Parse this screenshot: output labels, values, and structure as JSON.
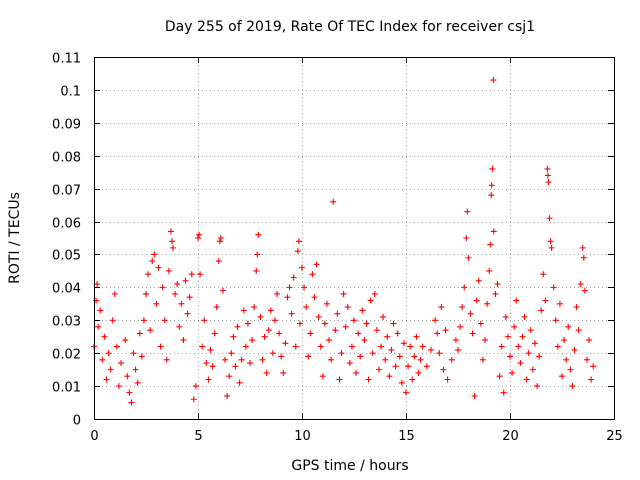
{
  "chart_data": {
    "type": "scatter",
    "title": "Day 255 of 2019, Rate Of TEC Index for receiver csj1",
    "xlabel": "GPS time / hours",
    "ylabel": "ROTI / TECUs",
    "xlim": [
      0,
      25
    ],
    "ylim": [
      0,
      0.11
    ],
    "xticks": [
      "0",
      "5",
      "10",
      "15",
      "20",
      "25"
    ],
    "yticks": [
      "0",
      "0.01",
      "0.02",
      "0.03",
      "0.04",
      "0.05",
      "0.06",
      "0.07",
      "0.08",
      "0.09",
      "0.1",
      "0.11"
    ],
    "grid": true,
    "marker": "plus",
    "color": "#ff0000",
    "series": [
      {
        "name": "ROTI",
        "points": [
          [
            0.0,
            0.022
          ],
          [
            0.1,
            0.036
          ],
          [
            0.15,
            0.041
          ],
          [
            0.2,
            0.028
          ],
          [
            0.3,
            0.033
          ],
          [
            0.4,
            0.018
          ],
          [
            0.5,
            0.025
          ],
          [
            0.6,
            0.012
          ],
          [
            0.7,
            0.02
          ],
          [
            0.8,
            0.015
          ],
          [
            0.9,
            0.03
          ],
          [
            1.0,
            0.038
          ],
          [
            1.1,
            0.022
          ],
          [
            1.2,
            0.01
          ],
          [
            1.3,
            0.017
          ],
          [
            1.5,
            0.024
          ],
          [
            1.6,
            0.013
          ],
          [
            1.7,
            0.008
          ],
          [
            1.8,
            0.005
          ],
          [
            1.9,
            0.02
          ],
          [
            2.0,
            0.015
          ],
          [
            2.1,
            0.011
          ],
          [
            2.2,
            0.026
          ],
          [
            2.3,
            0.019
          ],
          [
            2.4,
            0.03
          ],
          [
            2.5,
            0.038
          ],
          [
            2.6,
            0.044
          ],
          [
            2.7,
            0.027
          ],
          [
            2.8,
            0.048
          ],
          [
            2.9,
            0.05
          ],
          [
            3.0,
            0.035
          ],
          [
            3.1,
            0.046
          ],
          [
            3.2,
            0.022
          ],
          [
            3.3,
            0.04
          ],
          [
            3.4,
            0.03
          ],
          [
            3.5,
            0.018
          ],
          [
            3.6,
            0.045
          ],
          [
            3.7,
            0.057
          ],
          [
            3.75,
            0.054
          ],
          [
            3.8,
            0.052
          ],
          [
            3.9,
            0.038
          ],
          [
            4.0,
            0.041
          ],
          [
            4.1,
            0.028
          ],
          [
            4.2,
            0.035
          ],
          [
            4.3,
            0.024
          ],
          [
            4.4,
            0.042
          ],
          [
            4.5,
            0.032
          ],
          [
            4.6,
            0.037
          ],
          [
            4.7,
            0.044
          ],
          [
            4.8,
            0.006
          ],
          [
            4.9,
            0.01
          ],
          [
            5.0,
            0.055
          ],
          [
            5.05,
            0.056
          ],
          [
            5.1,
            0.044
          ],
          [
            5.2,
            0.022
          ],
          [
            5.3,
            0.03
          ],
          [
            5.4,
            0.017
          ],
          [
            5.5,
            0.012
          ],
          [
            5.6,
            0.021
          ],
          [
            5.7,
            0.016
          ],
          [
            5.8,
            0.026
          ],
          [
            5.9,
            0.034
          ],
          [
            6.0,
            0.048
          ],
          [
            6.05,
            0.054
          ],
          [
            6.1,
            0.055
          ],
          [
            6.2,
            0.039
          ],
          [
            6.3,
            0.018
          ],
          [
            6.4,
            0.007
          ],
          [
            6.5,
            0.013
          ],
          [
            6.6,
            0.02
          ],
          [
            6.7,
            0.025
          ],
          [
            6.8,
            0.016
          ],
          [
            6.9,
            0.028
          ],
          [
            7.0,
            0.011
          ],
          [
            7.1,
            0.018
          ],
          [
            7.2,
            0.033
          ],
          [
            7.3,
            0.022
          ],
          [
            7.4,
            0.029
          ],
          [
            7.5,
            0.017
          ],
          [
            7.6,
            0.024
          ],
          [
            7.7,
            0.034
          ],
          [
            7.8,
            0.045
          ],
          [
            7.85,
            0.05
          ],
          [
            7.9,
            0.056
          ],
          [
            8.0,
            0.031
          ],
          [
            8.1,
            0.018
          ],
          [
            8.2,
            0.025
          ],
          [
            8.3,
            0.014
          ],
          [
            8.4,
            0.027
          ],
          [
            8.5,
            0.033
          ],
          [
            8.6,
            0.02
          ],
          [
            8.7,
            0.03
          ],
          [
            8.8,
            0.038
          ],
          [
            8.9,
            0.026
          ],
          [
            9.0,
            0.019
          ],
          [
            9.1,
            0.014
          ],
          [
            9.2,
            0.023
          ],
          [
            9.3,
            0.037
          ],
          [
            9.4,
            0.04
          ],
          [
            9.5,
            0.032
          ],
          [
            9.6,
            0.043
          ],
          [
            9.7,
            0.022
          ],
          [
            9.8,
            0.051
          ],
          [
            9.85,
            0.054
          ],
          [
            9.9,
            0.029
          ],
          [
            10.0,
            0.046
          ],
          [
            10.1,
            0.04
          ],
          [
            10.2,
            0.034
          ],
          [
            10.3,
            0.019
          ],
          [
            10.4,
            0.026
          ],
          [
            10.5,
            0.044
          ],
          [
            10.6,
            0.037
          ],
          [
            10.7,
            0.047
          ],
          [
            10.8,
            0.031
          ],
          [
            10.9,
            0.022
          ],
          [
            11.0,
            0.013
          ],
          [
            11.1,
            0.029
          ],
          [
            11.2,
            0.035
          ],
          [
            11.3,
            0.024
          ],
          [
            11.4,
            0.018
          ],
          [
            11.5,
            0.066
          ],
          [
            11.6,
            0.027
          ],
          [
            11.7,
            0.032
          ],
          [
            11.8,
            0.012
          ],
          [
            11.9,
            0.02
          ],
          [
            12.0,
            0.038
          ],
          [
            12.1,
            0.028
          ],
          [
            12.2,
            0.034
          ],
          [
            12.3,
            0.017
          ],
          [
            12.4,
            0.022
          ],
          [
            12.5,
            0.03
          ],
          [
            12.6,
            0.014
          ],
          [
            12.7,
            0.026
          ],
          [
            12.8,
            0.019
          ],
          [
            12.9,
            0.033
          ],
          [
            13.0,
            0.024
          ],
          [
            13.1,
            0.029
          ],
          [
            13.2,
            0.012
          ],
          [
            13.3,
            0.036
          ],
          [
            13.4,
            0.02
          ],
          [
            13.5,
            0.038
          ],
          [
            13.6,
            0.027
          ],
          [
            13.7,
            0.015
          ],
          [
            13.8,
            0.022
          ],
          [
            13.9,
            0.031
          ],
          [
            14.0,
            0.018
          ],
          [
            14.1,
            0.025
          ],
          [
            14.2,
            0.013
          ],
          [
            14.3,
            0.021
          ],
          [
            14.4,
            0.029
          ],
          [
            14.5,
            0.016
          ],
          [
            14.6,
            0.026
          ],
          [
            14.7,
            0.019
          ],
          [
            14.8,
            0.011
          ],
          [
            14.9,
            0.023
          ],
          [
            15.0,
            0.008
          ],
          [
            15.1,
            0.016
          ],
          [
            15.2,
            0.022
          ],
          [
            15.3,
            0.012
          ],
          [
            15.4,
            0.019
          ],
          [
            15.5,
            0.025
          ],
          [
            15.6,
            0.014
          ],
          [
            15.7,
            0.018
          ],
          [
            15.8,
            0.022
          ],
          [
            16.0,
            0.016
          ],
          [
            16.2,
            0.021
          ],
          [
            16.4,
            0.03
          ],
          [
            16.5,
            0.026
          ],
          [
            16.6,
            0.02
          ],
          [
            16.7,
            0.034
          ],
          [
            16.8,
            0.015
          ],
          [
            16.9,
            0.027
          ],
          [
            17.0,
            0.012
          ],
          [
            17.2,
            0.018
          ],
          [
            17.4,
            0.024
          ],
          [
            17.5,
            0.021
          ],
          [
            17.6,
            0.028
          ],
          [
            17.7,
            0.034
          ],
          [
            17.8,
            0.04
          ],
          [
            17.9,
            0.055
          ],
          [
            17.95,
            0.063
          ],
          [
            18.0,
            0.049
          ],
          [
            18.1,
            0.032
          ],
          [
            18.2,
            0.026
          ],
          [
            18.3,
            0.007
          ],
          [
            18.4,
            0.036
          ],
          [
            18.5,
            0.042
          ],
          [
            18.6,
            0.029
          ],
          [
            18.7,
            0.018
          ],
          [
            18.8,
            0.024
          ],
          [
            18.9,
            0.035
          ],
          [
            19.0,
            0.045
          ],
          [
            19.05,
            0.053
          ],
          [
            19.1,
            0.068
          ],
          [
            19.12,
            0.071
          ],
          [
            19.15,
            0.076
          ],
          [
            19.2,
            0.103
          ],
          [
            19.22,
            0.057
          ],
          [
            19.3,
            0.038
          ],
          [
            19.4,
            0.041
          ],
          [
            19.5,
            0.013
          ],
          [
            19.6,
            0.022
          ],
          [
            19.7,
            0.008
          ],
          [
            19.8,
            0.031
          ],
          [
            19.9,
            0.025
          ],
          [
            20.0,
            0.019
          ],
          [
            20.1,
            0.014
          ],
          [
            20.2,
            0.028
          ],
          [
            20.3,
            0.036
          ],
          [
            20.4,
            0.022
          ],
          [
            20.5,
            0.017
          ],
          [
            20.6,
            0.025
          ],
          [
            20.7,
            0.031
          ],
          [
            20.8,
            0.012
          ],
          [
            20.9,
            0.02
          ],
          [
            21.0,
            0.027
          ],
          [
            21.1,
            0.015
          ],
          [
            21.2,
            0.023
          ],
          [
            21.3,
            0.01
          ],
          [
            21.4,
            0.019
          ],
          [
            21.5,
            0.033
          ],
          [
            21.6,
            0.044
          ],
          [
            21.7,
            0.036
          ],
          [
            21.8,
            0.076
          ],
          [
            21.82,
            0.074
          ],
          [
            21.85,
            0.072
          ],
          [
            21.9,
            0.061
          ],
          [
            21.95,
            0.054
          ],
          [
            22.0,
            0.052
          ],
          [
            22.1,
            0.04
          ],
          [
            22.2,
            0.03
          ],
          [
            22.3,
            0.022
          ],
          [
            22.4,
            0.035
          ],
          [
            22.5,
            0.013
          ],
          [
            22.6,
            0.024
          ],
          [
            22.7,
            0.018
          ],
          [
            22.8,
            0.028
          ],
          [
            22.9,
            0.015
          ],
          [
            23.0,
            0.01
          ],
          [
            23.1,
            0.021
          ],
          [
            23.2,
            0.034
          ],
          [
            23.3,
            0.027
          ],
          [
            23.4,
            0.041
          ],
          [
            23.5,
            0.052
          ],
          [
            23.55,
            0.049
          ],
          [
            23.6,
            0.039
          ],
          [
            23.7,
            0.018
          ],
          [
            23.8,
            0.024
          ],
          [
            23.9,
            0.012
          ],
          [
            24.0,
            0.016
          ]
        ]
      }
    ]
  }
}
